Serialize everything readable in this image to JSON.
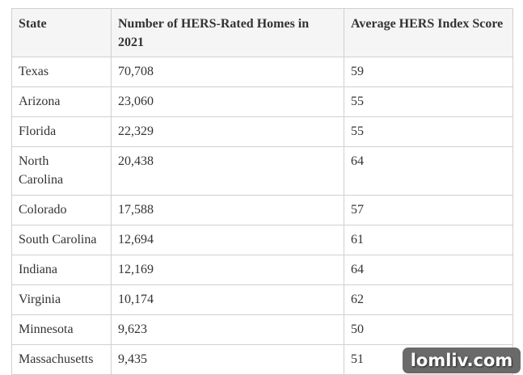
{
  "table": {
    "header": [
      "State",
      "Number of HERS-Rated Homes in 2021",
      "Average HERS Index Score"
    ],
    "rows": [
      [
        "Texas",
        "70,708",
        "59"
      ],
      [
        "Arizona",
        "23,060",
        "55"
      ],
      [
        "Florida",
        "22,329",
        "55"
      ],
      [
        "North Carolina",
        "20,438",
        "64"
      ],
      [
        "Colorado",
        "17,588",
        "57"
      ],
      [
        "South Carolina",
        "12,694",
        "61"
      ],
      [
        "Indiana",
        "12,169",
        "64"
      ],
      [
        "Virginia",
        "10,174",
        "62"
      ],
      [
        "Minnesota",
        "9,623",
        "50"
      ],
      [
        "Massachusetts",
        "9,435",
        "51"
      ]
    ]
  },
  "watermark": "lomliv.com"
}
